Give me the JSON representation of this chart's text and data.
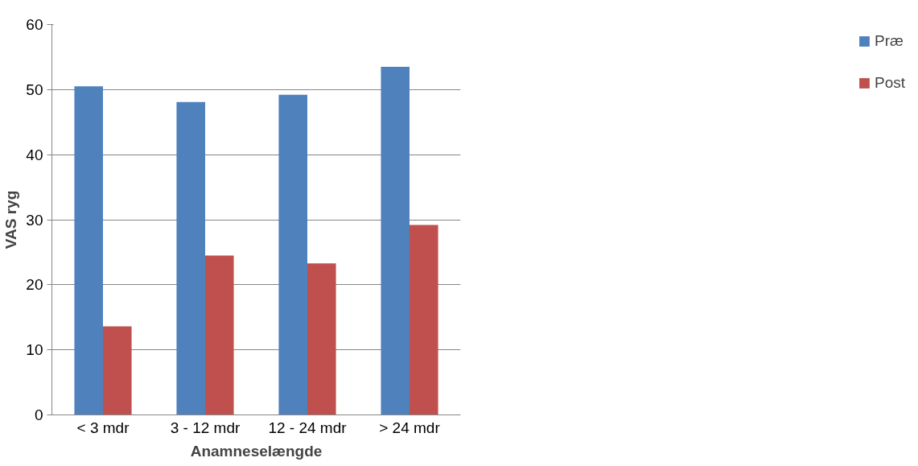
{
  "chart_data": {
    "type": "bar",
    "xlabel": "Anamneselængde",
    "ylabel": "VAS ryg",
    "categories": [
      "< 3 mdr",
      "3 - 12 mdr",
      "12 - 24 mdr",
      "> 24 mdr"
    ],
    "series": [
      {
        "name": "Præ",
        "color": "#4f81bd",
        "values": [
          50.5,
          48.1,
          49.2,
          53.5
        ]
      },
      {
        "name": "Post",
        "color": "#c0504d",
        "values": [
          13.6,
          24.5,
          23.3,
          29.2
        ]
      }
    ],
    "ylim": [
      0,
      60
    ],
    "yticks": [
      0,
      10,
      20,
      30,
      40,
      50,
      60
    ],
    "grid": "y",
    "legend": "right"
  }
}
